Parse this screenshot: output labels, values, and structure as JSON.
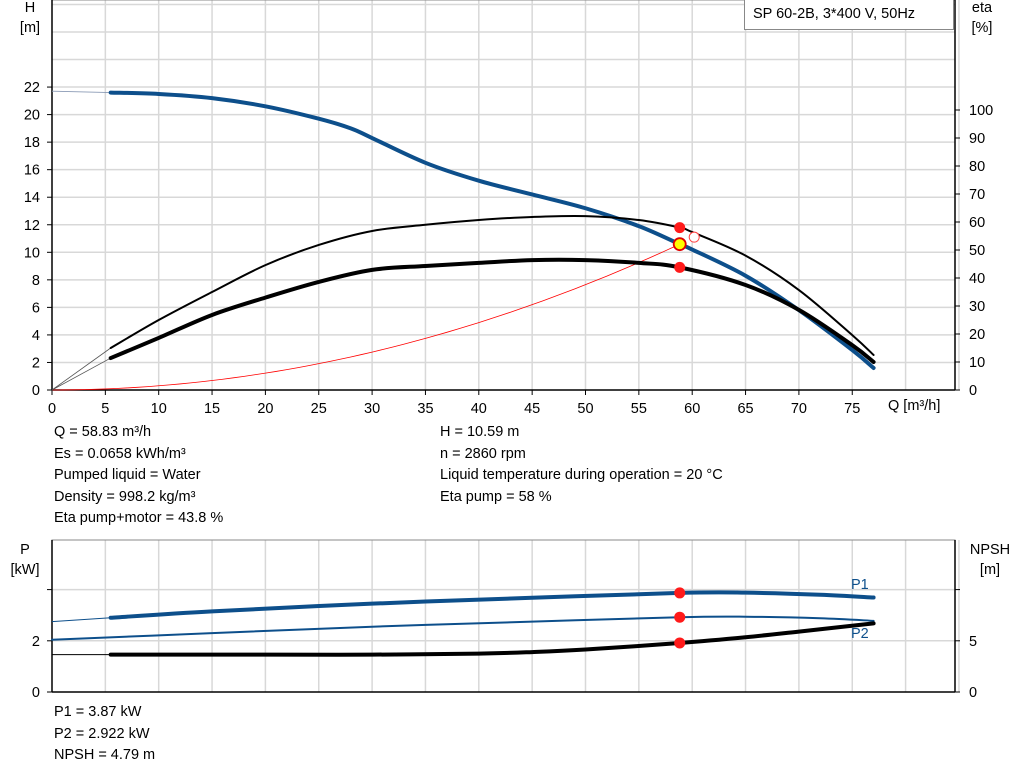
{
  "chart_data": [
    {
      "type": "line",
      "title": "SP 60-2B, 3*400 V, 50Hz",
      "xlabel": "Q [m³/h]",
      "ylabel_left": "H\n[m]",
      "ylabel_right": "eta\n[%]",
      "xlim": [
        0,
        85
      ],
      "ylim_left": [
        0,
        28
      ],
      "ylim_right": [
        0,
        100
      ],
      "xticks": [
        0,
        5,
        10,
        15,
        20,
        25,
        30,
        35,
        40,
        45,
        50,
        55,
        60,
        65,
        70,
        75
      ],
      "yticks_left": [
        0,
        2,
        4,
        6,
        8,
        10,
        12,
        14,
        16,
        18,
        20,
        22
      ],
      "yticks_right": [
        0,
        10,
        20,
        30,
        40,
        50,
        60,
        70,
        80,
        90,
        100
      ],
      "grid": true,
      "series": [
        {
          "id": "H",
          "axis": "left",
          "color": "#0d4f8b",
          "x": [
            5.5,
            10,
            15,
            20,
            25,
            28,
            30,
            35,
            40,
            45,
            50,
            55,
            58.83,
            60,
            65,
            70,
            75,
            77
          ],
          "y": [
            21.6,
            21.5,
            21.2,
            20.6,
            19.7,
            19,
            18.3,
            16.5,
            15.2,
            14.2,
            13.2,
            11.9,
            10.59,
            10.2,
            8.3,
            5.8,
            2.9,
            1.6
          ],
          "extrapolated_from": [
            0,
            21.7
          ]
        },
        {
          "id": "eta_pump",
          "axis": "right",
          "color": "#000000",
          "x": [
            5.5,
            10,
            15,
            20,
            25,
            30,
            35,
            40,
            45,
            50,
            55,
            58.83,
            60,
            65,
            70,
            75,
            77
          ],
          "y": [
            15,
            25,
            35,
            44.6,
            51.8,
            56.8,
            59,
            60.7,
            61.8,
            62.1,
            60.7,
            58,
            56.4,
            48,
            35.7,
            19.6,
            12.5
          ],
          "extrapolated_from": [
            0,
            0
          ]
        },
        {
          "id": "eta_total",
          "axis": "right",
          "color": "#000000",
          "x": [
            5.5,
            10,
            15,
            20,
            25,
            30,
            35,
            40,
            45,
            50,
            55,
            58.83,
            65,
            70,
            75,
            77
          ],
          "y": [
            11.4,
            18.6,
            26.8,
            33,
            38.6,
            42.9,
            44.3,
            45.4,
            46.4,
            46.4,
            45.4,
            43.8,
            37.5,
            28.6,
            16,
            10
          ],
          "extrapolated_from": [
            0,
            0
          ]
        },
        {
          "id": "system_curve",
          "axis": "left",
          "color": "#ff0000",
          "type": "quadratic",
          "through": [
            [
              0,
              0
            ],
            [
              58.83,
              10.59
            ]
          ]
        }
      ],
      "duty_point": {
        "Q": 58.83,
        "H": 10.59,
        "eta_pump": 58,
        "eta_total": 43.8
      },
      "requested_point": {
        "Q": 60,
        "H": 11.1
      }
    },
    {
      "type": "line",
      "ylabel_left": "P\n[kW]",
      "ylabel_right": "NPSH\n[m]",
      "xlim": [
        0,
        85
      ],
      "ylim_left": [
        0,
        6
      ],
      "ylim_right": [
        0,
        15
      ],
      "yticks_left": [
        0,
        2
      ],
      "yticks_right": [
        0,
        5
      ],
      "grid": true,
      "series": [
        {
          "id": "P1",
          "name": "P1",
          "axis": "left",
          "color": "#0d4f8b",
          "x": [
            5.5,
            15,
            30,
            45,
            58.83,
            65,
            72,
            77
          ],
          "y": [
            2.9,
            3.15,
            3.45,
            3.68,
            3.87,
            3.88,
            3.8,
            3.69
          ],
          "extrapolated_from": [
            0,
            2.75
          ]
        },
        {
          "id": "P2",
          "name": "P2",
          "axis": "left",
          "color": "#0d4f8b",
          "x": [
            0,
            15,
            30,
            45,
            58.83,
            65,
            72,
            77
          ],
          "y": [
            2.04,
            2.3,
            2.55,
            2.75,
            2.922,
            2.94,
            2.88,
            2.78
          ]
        },
        {
          "id": "NPSH",
          "axis": "right",
          "color": "#000000",
          "x": [
            5.5,
            20,
            30,
            40,
            45,
            50,
            58.83,
            65,
            70,
            77
          ],
          "y": [
            3.65,
            3.65,
            3.65,
            3.75,
            3.9,
            4.15,
            4.79,
            5.35,
            5.9,
            6.7
          ],
          "extrapolated_from": [
            0,
            3.65
          ]
        }
      ],
      "duty_point": {
        "Q": 58.83,
        "P1": 3.87,
        "P2": 2.922,
        "NPSH": 4.79
      }
    }
  ],
  "info": {
    "left": [
      "Q = 58.83 m³/h",
      "Es = 0.0658 kWh/m³",
      "Pumped liquid = Water",
      "Density = 998.2 kg/m³",
      "Eta pump+motor = 43.8 %"
    ],
    "right": [
      "H = 10.59 m",
      "n = 2860 rpm",
      "Liquid temperature during operation = 20 °C",
      "Eta pump = 58 %"
    ],
    "bottom": [
      "P1 = 3.87 kW",
      "P2 = 2.922 kW",
      "NPSH = 4.79 m"
    ]
  },
  "labels": {
    "H": "H",
    "H_unit": "[m]",
    "eta": "eta",
    "eta_unit": "[%]",
    "P": "P",
    "P_unit": "[kW]",
    "NPSH": "NPSH",
    "NPSH_unit": "[m]",
    "q_axis": "Q [m³/h]",
    "p1": "P1",
    "p2": "P2"
  }
}
